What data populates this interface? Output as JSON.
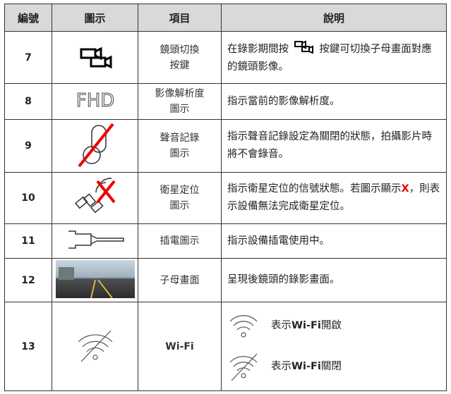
{
  "table": {
    "header": [
      "編號",
      "圖示",
      "項目",
      "說明"
    ],
    "rows": [
      {
        "number": 7,
        "item": [
          "鏡頭切換",
          "按鍵"
        ],
        "description": [
          "在錄影期間按",
          "按鍵可切換子母畫面對應的鏡頭影像。"
        ]
      },
      {
        "number": 8,
        "icon_text": "FHD",
        "item": [
          "影像解析度",
          "圖示"
        ],
        "description": [
          "指示當前的影像解析度。"
        ]
      },
      {
        "number": 9,
        "item": [
          "聲音記錄",
          "圖示"
        ],
        "description": [
          "指示聲音記錄設定為關閉的狀態，拍攝影片時將不會錄音。"
        ]
      },
      {
        "number": 10,
        "item": [
          "衛星定位",
          "圖示"
        ],
        "description": [
          "指示衛星定位的信號狀態。若圖示顯示",
          "X",
          "，則表示設備無法完成衛星定位。"
        ]
      },
      {
        "number": 11,
        "item": [
          "插電圖示"
        ],
        "description": [
          "指示設備插電使用中。"
        ]
      },
      {
        "number": 12,
        "item": [
          "子母畫面"
        ],
        "description": [
          "呈現後鏡頭的錄影畫面。"
        ]
      },
      {
        "number": 13,
        "item": [
          "Wi-Fi"
        ],
        "description": [
          [
            "表示",
            "Wi-Fi",
            "開啟"
          ],
          [
            "表示",
            "Wi-Fi",
            "關閉"
          ]
        ]
      }
    ]
  }
}
